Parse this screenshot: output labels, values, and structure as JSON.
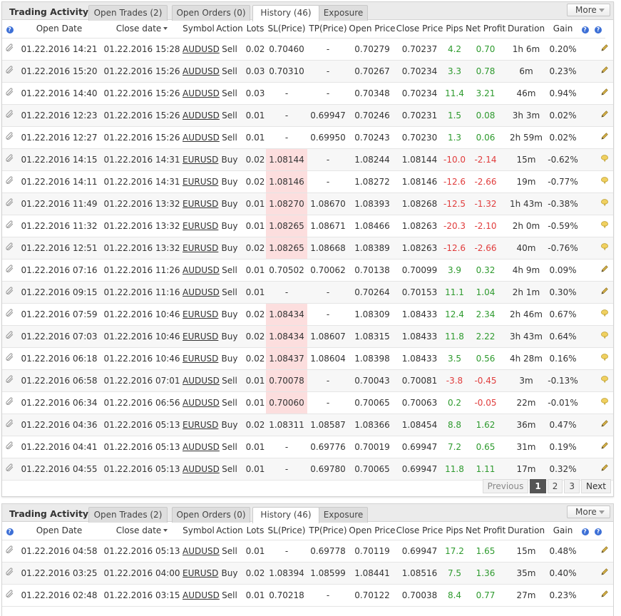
{
  "widgets": [
    {
      "title": "Trading Activity",
      "tabs": [
        "Open Trades (2)",
        "Open Orders (0)",
        "History (46)",
        "Exposure"
      ],
      "active_tab": 2,
      "more_label": "More",
      "headers": {
        "open_date": "Open Date",
        "close_date": "Close date",
        "symbol": "Symbol",
        "action": "Action",
        "lots": "Lots",
        "sl": "SL(Price)",
        "tp": "TP(Price)",
        "open_price": "Open Price",
        "close_price": "Close Price",
        "pips": "Pips",
        "net_profit": "Net Profit",
        "duration": "Duration",
        "gain": "Gain"
      },
      "rows": [
        {
          "open_date": "01.22.2016 14:21",
          "close_date": "01.22.2016 15:28",
          "symbol": "AUDUSD",
          "action": "Sell",
          "lots": "0.02",
          "sl": "0.70460",
          "tp": "-",
          "open_price": "0.70279",
          "close_price": "0.70237",
          "pips": "4.2",
          "net_profit": "0.70",
          "duration": "1h 6m",
          "gain": "0.20%"
        },
        {
          "open_date": "01.22.2016 15:20",
          "close_date": "01.22.2016 15:26",
          "symbol": "AUDUSD",
          "action": "Sell",
          "lots": "0.03",
          "sl": "0.70310",
          "tp": "-",
          "open_price": "0.70267",
          "close_price": "0.70234",
          "pips": "3.3",
          "net_profit": "0.78",
          "duration": "6m",
          "gain": "0.23%"
        },
        {
          "open_date": "01.22.2016 14:40",
          "close_date": "01.22.2016 15:26",
          "symbol": "AUDUSD",
          "action": "Sell",
          "lots": "0.03",
          "sl": "-",
          "tp": "-",
          "open_price": "0.70348",
          "close_price": "0.70234",
          "pips": "11.4",
          "net_profit": "3.21",
          "duration": "46m",
          "gain": "0.94%"
        },
        {
          "open_date": "01.22.2016 12:23",
          "close_date": "01.22.2016 15:26",
          "symbol": "AUDUSD",
          "action": "Sell",
          "lots": "0.01",
          "sl": "-",
          "tp": "0.69947",
          "open_price": "0.70246",
          "close_price": "0.70231",
          "pips": "1.5",
          "net_profit": "0.08",
          "duration": "3h 3m",
          "gain": "0.02%"
        },
        {
          "open_date": "01.22.2016 12:27",
          "close_date": "01.22.2016 15:26",
          "symbol": "AUDUSD",
          "action": "Sell",
          "lots": "0.01",
          "sl": "-",
          "tp": "0.69950",
          "open_price": "0.70243",
          "close_price": "0.70230",
          "pips": "1.3",
          "net_profit": "0.06",
          "duration": "2h 59m",
          "gain": "0.02%"
        },
        {
          "open_date": "01.22.2016 14:15",
          "close_date": "01.22.2016 14:31",
          "symbol": "EURUSD",
          "action": "Buy",
          "lots": "0.02",
          "sl": "1.08144",
          "tp": "-",
          "open_price": "1.08244",
          "close_price": "1.08144",
          "pips": "-10.0",
          "net_profit": "-2.14",
          "duration": "15m",
          "gain": "-0.62%",
          "sl_hit": true
        },
        {
          "open_date": "01.22.2016 14:11",
          "close_date": "01.22.2016 14:31",
          "symbol": "EURUSD",
          "action": "Buy",
          "lots": "0.02",
          "sl": "1.08146",
          "tp": "-",
          "open_price": "1.08272",
          "close_price": "1.08146",
          "pips": "-12.6",
          "net_profit": "-2.66",
          "duration": "19m",
          "gain": "-0.77%",
          "sl_hit": true
        },
        {
          "open_date": "01.22.2016 11:49",
          "close_date": "01.22.2016 13:32",
          "symbol": "EURUSD",
          "action": "Buy",
          "lots": "0.01",
          "sl": "1.08270",
          "tp": "1.08670",
          "open_price": "1.08393",
          "close_price": "1.08268",
          "pips": "-12.5",
          "net_profit": "-1.32",
          "duration": "1h 43m",
          "gain": "-0.38%",
          "sl_hit": true
        },
        {
          "open_date": "01.22.2016 11:32",
          "close_date": "01.22.2016 13:32",
          "symbol": "EURUSD",
          "action": "Buy",
          "lots": "0.01",
          "sl": "1.08265",
          "tp": "1.08671",
          "open_price": "1.08466",
          "close_price": "1.08263",
          "pips": "-20.3",
          "net_profit": "-2.10",
          "duration": "2h 0m",
          "gain": "-0.59%",
          "sl_hit": true
        },
        {
          "open_date": "01.22.2016 12:51",
          "close_date": "01.22.2016 13:32",
          "symbol": "EURUSD",
          "action": "Buy",
          "lots": "0.02",
          "sl": "1.08265",
          "tp": "1.08668",
          "open_price": "1.08389",
          "close_price": "1.08263",
          "pips": "-12.6",
          "net_profit": "-2.66",
          "duration": "40m",
          "gain": "-0.76%",
          "sl_hit": true
        },
        {
          "open_date": "01.22.2016 07:16",
          "close_date": "01.22.2016 11:26",
          "symbol": "AUDUSD",
          "action": "Sell",
          "lots": "0.01",
          "sl": "0.70502",
          "tp": "0.70062",
          "open_price": "0.70138",
          "close_price": "0.70099",
          "pips": "3.9",
          "net_profit": "0.32",
          "duration": "4h 9m",
          "gain": "0.09%"
        },
        {
          "open_date": "01.22.2016 09:15",
          "close_date": "01.22.2016 11:16",
          "symbol": "AUDUSD",
          "action": "Sell",
          "lots": "0.01",
          "sl": "-",
          "tp": "-",
          "open_price": "0.70264",
          "close_price": "0.70153",
          "pips": "11.1",
          "net_profit": "1.04",
          "duration": "2h 1m",
          "gain": "0.30%"
        },
        {
          "open_date": "01.22.2016 07:59",
          "close_date": "01.22.2016 10:46",
          "symbol": "EURUSD",
          "action": "Buy",
          "lots": "0.02",
          "sl": "1.08434",
          "tp": "-",
          "open_price": "1.08309",
          "close_price": "1.08433",
          "pips": "12.4",
          "net_profit": "2.34",
          "duration": "2h 46m",
          "gain": "0.67%",
          "sl_hit": true
        },
        {
          "open_date": "01.22.2016 07:03",
          "close_date": "01.22.2016 10:46",
          "symbol": "EURUSD",
          "action": "Buy",
          "lots": "0.02",
          "sl": "1.08434",
          "tp": "1.08607",
          "open_price": "1.08315",
          "close_price": "1.08433",
          "pips": "11.8",
          "net_profit": "2.22",
          "duration": "3h 43m",
          "gain": "0.64%",
          "sl_hit": true
        },
        {
          "open_date": "01.22.2016 06:18",
          "close_date": "01.22.2016 10:46",
          "symbol": "EURUSD",
          "action": "Buy",
          "lots": "0.02",
          "sl": "1.08437",
          "tp": "1.08604",
          "open_price": "1.08398",
          "close_price": "1.08433",
          "pips": "3.5",
          "net_profit": "0.56",
          "duration": "4h 28m",
          "gain": "0.16%",
          "sl_hit": true
        },
        {
          "open_date": "01.22.2016 06:58",
          "close_date": "01.22.2016 07:01",
          "symbol": "AUDUSD",
          "action": "Sell",
          "lots": "0.01",
          "sl": "0.70078",
          "tp": "-",
          "open_price": "0.70043",
          "close_price": "0.70081",
          "pips": "-3.8",
          "net_profit": "-0.45",
          "duration": "3m",
          "gain": "-0.13%",
          "sl_hit": true
        },
        {
          "open_date": "01.22.2016 06:34",
          "close_date": "01.22.2016 06:56",
          "symbol": "AUDUSD",
          "action": "Sell",
          "lots": "0.01",
          "sl": "0.70060",
          "tp": "-",
          "open_price": "0.70065",
          "close_price": "0.70063",
          "pips": "0.2",
          "net_profit": "-0.05",
          "duration": "22m",
          "gain": "-0.01%",
          "sl_hit": true
        },
        {
          "open_date": "01.22.2016 04:36",
          "close_date": "01.22.2016 05:13",
          "symbol": "EURUSD",
          "action": "Buy",
          "lots": "0.02",
          "sl": "1.08311",
          "tp": "1.08587",
          "open_price": "1.08366",
          "close_price": "1.08454",
          "pips": "8.8",
          "net_profit": "1.62",
          "duration": "36m",
          "gain": "0.47%"
        },
        {
          "open_date": "01.22.2016 04:41",
          "close_date": "01.22.2016 05:13",
          "symbol": "AUDUSD",
          "action": "Sell",
          "lots": "0.01",
          "sl": "-",
          "tp": "0.69776",
          "open_price": "0.70019",
          "close_price": "0.69947",
          "pips": "7.2",
          "net_profit": "0.65",
          "duration": "31m",
          "gain": "0.19%"
        },
        {
          "open_date": "01.22.2016 04:55",
          "close_date": "01.22.2016 05:13",
          "symbol": "AUDUSD",
          "action": "Sell",
          "lots": "0.01",
          "sl": "-",
          "tp": "0.69780",
          "open_price": "0.70065",
          "close_price": "0.69947",
          "pips": "11.8",
          "net_profit": "1.11",
          "duration": "17m",
          "gain": "0.32%"
        }
      ],
      "pagination": {
        "previous": "Previous",
        "pages": [
          "1",
          "2",
          "3"
        ],
        "current": "1",
        "next": "Next"
      }
    },
    {
      "title": "Trading Activity",
      "tabs": [
        "Open Trades (2)",
        "Open Orders (0)",
        "History (46)",
        "Exposure"
      ],
      "active_tab": 2,
      "more_label": "More",
      "headers": {
        "open_date": "Open Date",
        "close_date": "Close date",
        "symbol": "Symbol",
        "action": "Action",
        "lots": "Lots",
        "sl": "SL(Price)",
        "tp": "TP(Price)",
        "open_price": "Open Price",
        "close_price": "Close Price",
        "pips": "Pips",
        "net_profit": "Net Profit",
        "duration": "Duration",
        "gain": "Gain"
      },
      "rows": [
        {
          "open_date": "01.22.2016 04:58",
          "close_date": "01.22.2016 05:13",
          "symbol": "AUDUSD",
          "action": "Sell",
          "lots": "0.01",
          "sl": "-",
          "tp": "0.69778",
          "open_price": "0.70119",
          "close_price": "0.69947",
          "pips": "17.2",
          "net_profit": "1.65",
          "duration": "15m",
          "gain": "0.48%"
        },
        {
          "open_date": "01.22.2016 03:25",
          "close_date": "01.22.2016 04:00",
          "symbol": "EURUSD",
          "action": "Buy",
          "lots": "0.02",
          "sl": "1.08394",
          "tp": "1.08599",
          "open_price": "1.08441",
          "close_price": "1.08516",
          "pips": "7.5",
          "net_profit": "1.36",
          "duration": "35m",
          "gain": "0.40%"
        },
        {
          "open_date": "01.22.2016 02:48",
          "close_date": "01.22.2016 03:15",
          "symbol": "AUDUSD",
          "action": "Sell",
          "lots": "0.01",
          "sl": "0.70218",
          "tp": "-",
          "open_price": "0.70122",
          "close_price": "0.70038",
          "pips": "8.4",
          "net_profit": "0.77",
          "duration": "27m",
          "gain": "0.23%"
        }
      ]
    }
  ],
  "colors": {
    "positive": "#2e9a2e",
    "negative": "#e03c3c",
    "sl_highlight": "#fcdede",
    "help_icon": "#3c6fd6",
    "pencil_icon": "#d9b44a",
    "comment_icon": "#f0d060"
  },
  "icons": {
    "row_lead": "paperclip-icon",
    "row_edit": "pencil-icon",
    "row_comment": "comment-icon",
    "header_help": "help-icon"
  }
}
